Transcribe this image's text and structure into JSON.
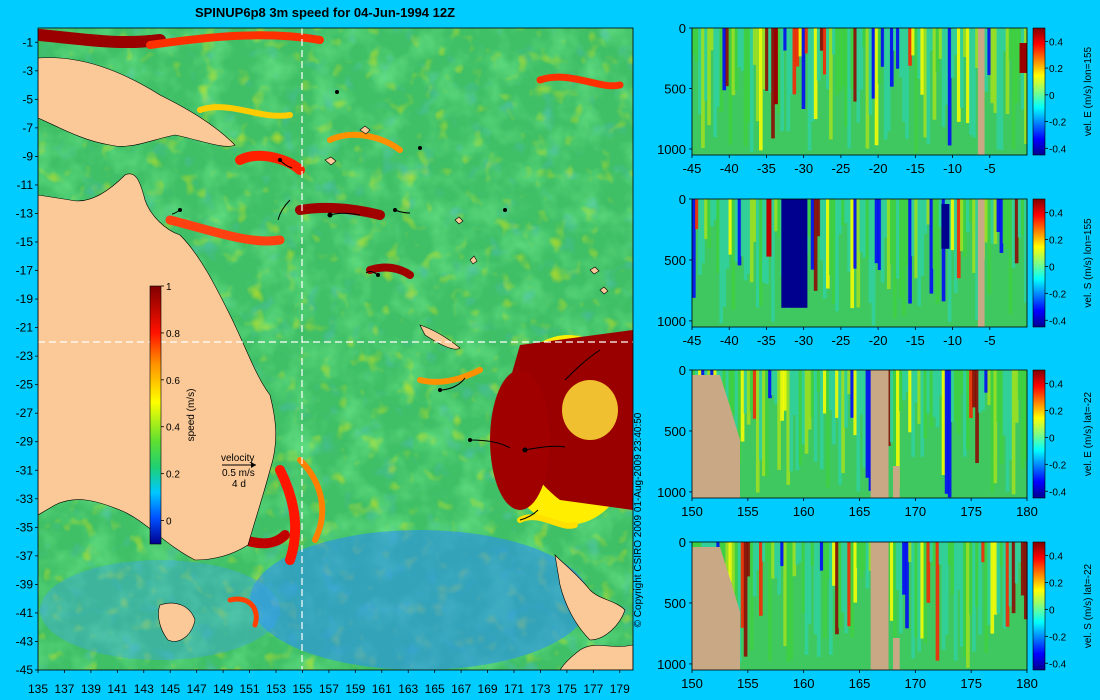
{
  "background_color": "#00ccff",
  "land_color": "#fbc997",
  "section_land_color": "#c9a886",
  "map": {
    "title": "SPINUP6p8 3m speed for 04-Jun-1994 12Z",
    "lat_ticks": [
      "-1",
      "-3",
      "-5",
      "-7",
      "-9",
      "-11",
      "-13",
      "-15",
      "-17",
      "-19",
      "-21",
      "-23",
      "-25",
      "-27",
      "-29",
      "-31",
      "-33",
      "-35",
      "-37",
      "-39",
      "-41",
      "-43",
      "-45"
    ],
    "lon_ticks": [
      "135",
      "137",
      "139",
      "141",
      "143",
      "145",
      "147",
      "149",
      "151",
      "153",
      "155",
      "157",
      "159",
      "161",
      "163",
      "165",
      "167",
      "169",
      "171",
      "173",
      "175",
      "177",
      "179"
    ],
    "section_lon": 155,
    "section_lat": -22,
    "colorbar": {
      "label": "speed (m/s)",
      "ticks": [
        "1",
        "0.8",
        "0.6",
        "0.4",
        "0.2",
        "0"
      ]
    },
    "velocity_key": {
      "title": "velocity",
      "speed": "0.5 m/s",
      "duration": "4 d"
    }
  },
  "copyright": "© Copyright CSIRO 2009   01-Aug-2009 23:40:50",
  "sections": [
    {
      "label": "vel. E (m/s) lon=155",
      "x_ticks": [
        "-45",
        "-40",
        "-35",
        "-30",
        "-25",
        "-20",
        "-15",
        "-10",
        "-5"
      ],
      "y_ticks": [
        "0",
        "500",
        "1000"
      ],
      "cbar_ticks": [
        "0.4",
        "0.2",
        "0",
        "-0.2",
        "-0.4"
      ]
    },
    {
      "label": "vel. S (m/s) lon=155",
      "x_ticks": [
        "-45",
        "-40",
        "-35",
        "-30",
        "-25",
        "-20",
        "-15",
        "-10",
        "-5"
      ],
      "y_ticks": [
        "0",
        "500",
        "1000"
      ],
      "cbar_ticks": [
        "0.4",
        "0.2",
        "0",
        "-0.2",
        "-0.4"
      ]
    },
    {
      "label": "vel. E (m/s) lat=-22",
      "x_ticks": [
        "150",
        "155",
        "160",
        "165",
        "170",
        "175",
        "180"
      ],
      "y_ticks": [
        "0",
        "500",
        "1000"
      ],
      "cbar_ticks": [
        "0.4",
        "0.2",
        "0",
        "-0.2",
        "-0.4"
      ]
    },
    {
      "label": "vel. S (m/s) lat=-22",
      "x_ticks": [
        "150",
        "155",
        "160",
        "165",
        "170",
        "175",
        "180"
      ],
      "y_ticks": [
        "0",
        "500",
        "1000"
      ],
      "cbar_ticks": [
        "0.4",
        "0.2",
        "0",
        "-0.2",
        "-0.4"
      ]
    }
  ],
  "chart_data": [
    {
      "type": "heatmap",
      "title": "SPINUP6p8 3m speed for 04-Jun-1994 12Z",
      "x_ticks": [
        135,
        137,
        139,
        141,
        143,
        145,
        147,
        149,
        151,
        153,
        155,
        157,
        159,
        161,
        163,
        165,
        167,
        169,
        171,
        173,
        175,
        177,
        179
      ],
      "y_ticks": [
        -1,
        -3,
        -5,
        -7,
        -9,
        -11,
        -13,
        -15,
        -17,
        -19,
        -21,
        -23,
        -25,
        -27,
        -29,
        -31,
        -33,
        -35,
        -37,
        -39,
        -41,
        -43,
        -45
      ],
      "xlim": [
        135,
        180
      ],
      "ylim": [
        -45,
        0
      ],
      "colorbar_label": "speed (m/s)",
      "clim": [
        -0.1,
        1
      ]
    },
    {
      "type": "heatmap",
      "colorbar_label": "vel. E (m/s) lon=155",
      "xlim": [
        -45,
        0
      ],
      "ylim": [
        1050,
        0
      ],
      "clim": [
        -0.45,
        0.5
      ]
    },
    {
      "type": "heatmap",
      "colorbar_label": "vel. S (m/s) lon=155",
      "xlim": [
        -45,
        0
      ],
      "ylim": [
        1050,
        0
      ],
      "clim": [
        -0.45,
        0.5
      ]
    },
    {
      "type": "heatmap",
      "colorbar_label": "vel. E (m/s) lat=-22",
      "xlim": [
        150,
        180
      ],
      "ylim": [
        1050,
        0
      ],
      "clim": [
        -0.45,
        0.5
      ]
    },
    {
      "type": "heatmap",
      "colorbar_label": "vel. S (m/s) lat=-22",
      "xlim": [
        150,
        180
      ],
      "ylim": [
        1050,
        0
      ],
      "clim": [
        -0.45,
        0.5
      ]
    }
  ]
}
